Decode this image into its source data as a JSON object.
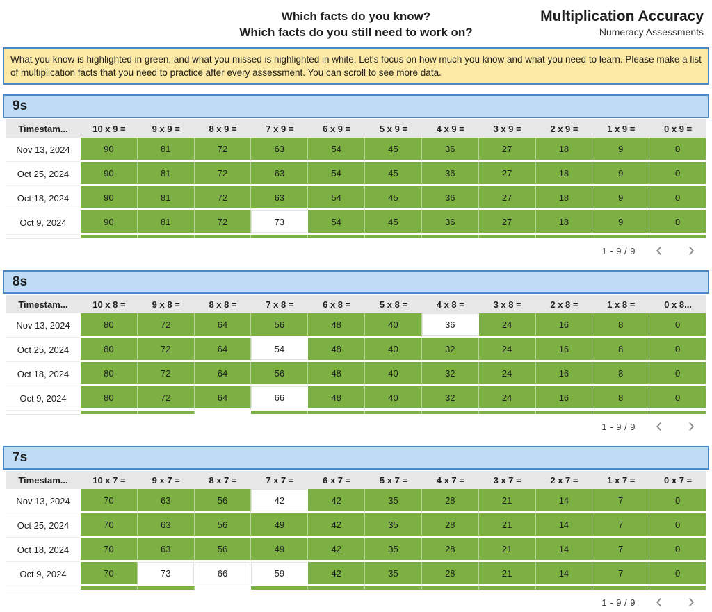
{
  "page": {
    "heading_line1": "Which facts do you know?",
    "heading_line2": "Which facts do you still need to work on?",
    "title": "Multiplication Accuracy",
    "subtitle": "Numeracy Assessments",
    "banner": "What you know is highlighted in green, and what you missed is highlighted in white. Let's focus on how much you know and what you need to learn.  Please make a list of multiplication facts that you need to practice after every assessment.  You can scroll to see more data."
  },
  "colors": {
    "correct-fill": "#7cb043",
    "missed-fill": "#ffffff",
    "section-fill": "#bedcf5",
    "section-border": "#4a86c8",
    "banner-fill": "#fce9a6",
    "header-fill": "#e7e7e7",
    "icon-gray": "#8a8a8a"
  },
  "tables": [
    {
      "title": "9s",
      "timestamp_header": "Timestam...",
      "columns": [
        "10 x 9 =",
        "9 x 9 =",
        "8 x 9 =",
        "7 x 9 =",
        "6 x 9 =",
        "5 x 9 =",
        "4 x 9 =",
        "3 x 9 =",
        "2 x 9 =",
        "1 x 9 =",
        "0 x 9 ="
      ],
      "rows": [
        {
          "timestamp": "Nov 13, 2024",
          "values": [
            90,
            81,
            72,
            63,
            54,
            45,
            36,
            27,
            18,
            9,
            0
          ],
          "missed": []
        },
        {
          "timestamp": "Oct 25, 2024",
          "values": [
            90,
            81,
            72,
            63,
            54,
            45,
            36,
            27,
            18,
            9,
            0
          ],
          "missed": []
        },
        {
          "timestamp": "Oct 18, 2024",
          "values": [
            90,
            81,
            72,
            63,
            54,
            45,
            36,
            27,
            18,
            9,
            0
          ],
          "missed": []
        },
        {
          "timestamp": "Oct 9, 2024",
          "values": [
            90,
            81,
            72,
            73,
            54,
            45,
            36,
            27,
            18,
            9,
            0
          ],
          "missed": [
            3
          ]
        }
      ],
      "partial_missed": [],
      "pagination": "1 - 9 / 9"
    },
    {
      "title": "8s",
      "timestamp_header": "Timestam...",
      "columns": [
        "10 x 8 =",
        "9 x 8 =",
        "8 x 8 =",
        "7 x 8 =",
        "6 x 8 =",
        "5 x 8 =",
        "4 x 8 =",
        "3 x 8 =",
        "2 x 8 =",
        "1 x 8 =",
        "0 x 8..."
      ],
      "rows": [
        {
          "timestamp": "Nov 13, 2024",
          "values": [
            80,
            72,
            64,
            56,
            48,
            40,
            36,
            24,
            16,
            8,
            0
          ],
          "missed": [
            6
          ]
        },
        {
          "timestamp": "Oct 25, 2024",
          "values": [
            80,
            72,
            64,
            54,
            48,
            40,
            32,
            24,
            16,
            8,
            0
          ],
          "missed": [
            3
          ]
        },
        {
          "timestamp": "Oct 18, 2024",
          "values": [
            80,
            72,
            64,
            56,
            48,
            40,
            32,
            24,
            16,
            8,
            0
          ],
          "missed": []
        },
        {
          "timestamp": "Oct 9, 2024",
          "values": [
            80,
            72,
            64,
            66,
            48,
            40,
            32,
            24,
            16,
            8,
            0
          ],
          "missed": [
            3
          ]
        }
      ],
      "partial_missed": [
        2
      ],
      "pagination": "1 - 9 / 9"
    },
    {
      "title": "7s",
      "timestamp_header": "Timestam...",
      "columns": [
        "10 x 7 =",
        "9 x 7 =",
        "8 x 7 =",
        "7 x 7 =",
        "6 x 7 =",
        "5 x 7 =",
        "4 x 7 =",
        "3 x 7 =",
        "2 x 7 =",
        "1 x 7 =",
        "0 x 7 ="
      ],
      "rows": [
        {
          "timestamp": "Nov 13, 2024",
          "values": [
            70,
            63,
            56,
            42,
            42,
            35,
            28,
            21,
            14,
            7,
            0
          ],
          "missed": [
            3
          ]
        },
        {
          "timestamp": "Oct 25, 2024",
          "values": [
            70,
            63,
            56,
            49,
            42,
            35,
            28,
            21,
            14,
            7,
            0
          ],
          "missed": []
        },
        {
          "timestamp": "Oct 18, 2024",
          "values": [
            70,
            63,
            56,
            49,
            42,
            35,
            28,
            21,
            14,
            7,
            0
          ],
          "missed": []
        },
        {
          "timestamp": "Oct 9, 2024",
          "values": [
            70,
            73,
            66,
            59,
            42,
            35,
            28,
            21,
            14,
            7,
            0
          ],
          "missed": [
            1,
            2,
            3
          ]
        }
      ],
      "partial_missed": [
        2
      ],
      "pagination": "1 - 9 / 9"
    }
  ]
}
